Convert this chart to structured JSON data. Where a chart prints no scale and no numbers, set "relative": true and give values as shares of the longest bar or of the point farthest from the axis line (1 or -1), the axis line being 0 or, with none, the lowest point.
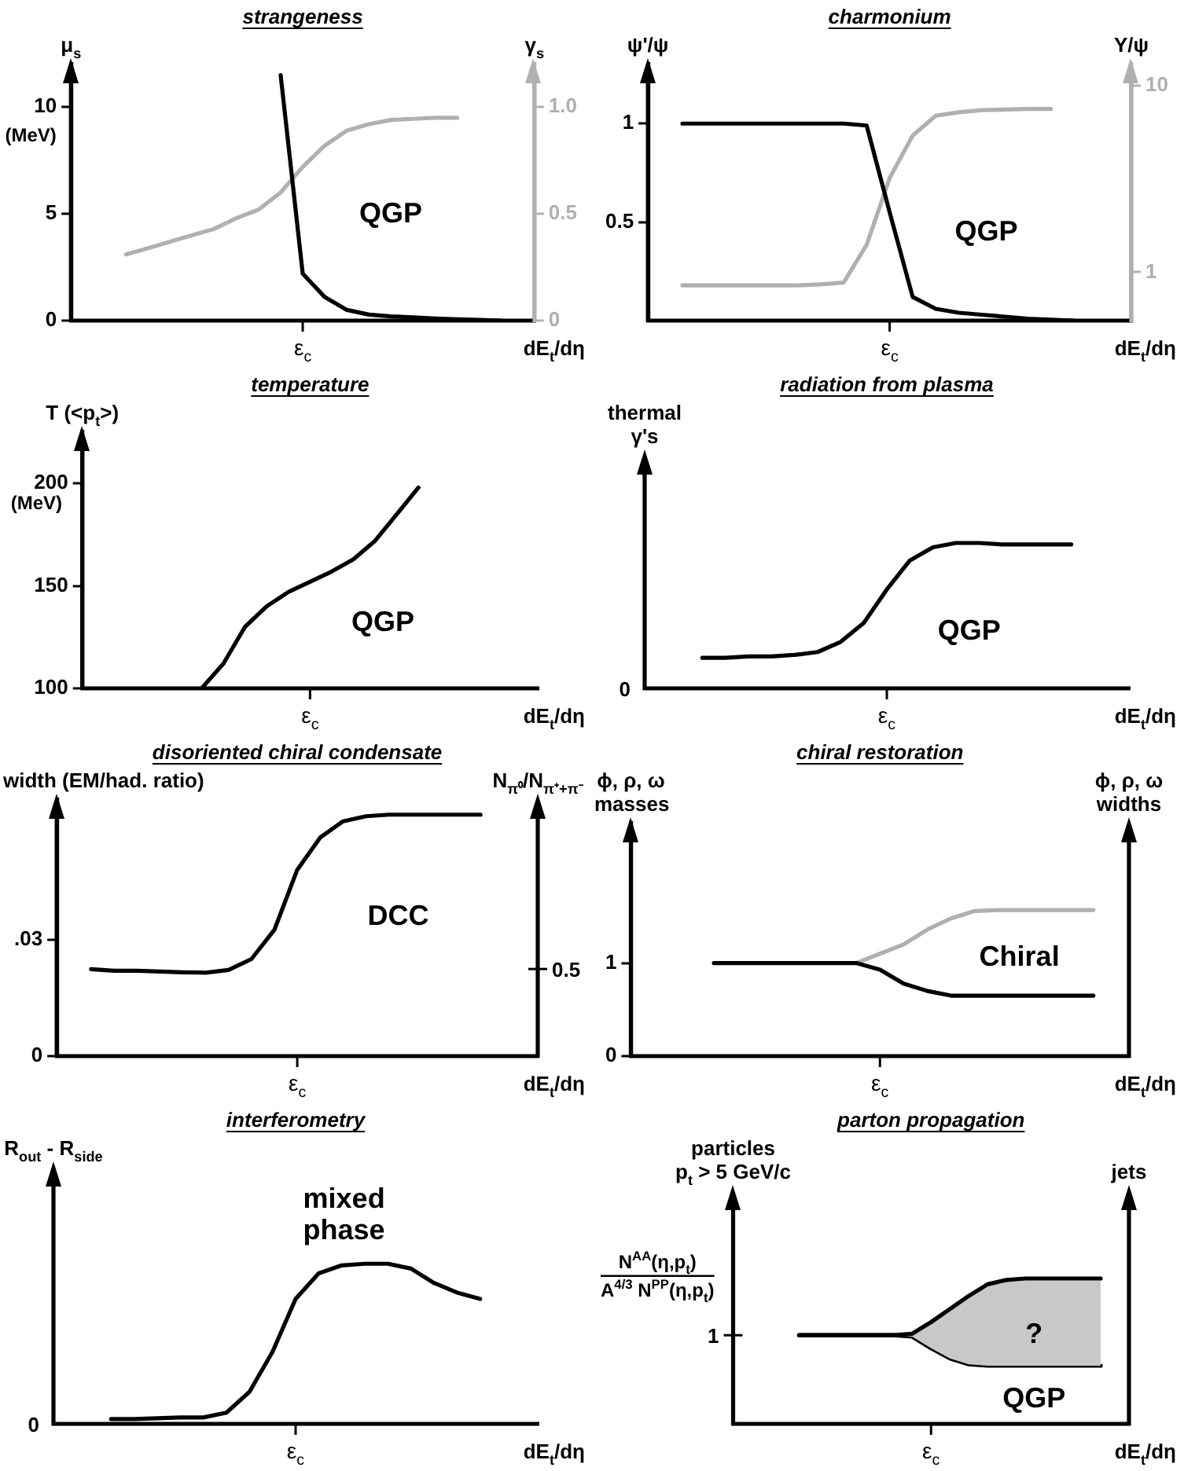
{
  "chart_data": [
    {
      "type": "line",
      "title": "strangeness",
      "xlabel": "dE$_{t}$/dη",
      "ylabel": "μ$_{s}$",
      "y2label": "γ$_{s}$",
      "categories": [
        null,
        null,
        null,
        null,
        null,
        null,
        null,
        null,
        null,
        null,
        "ε$_{c}$",
        null,
        null,
        null,
        null,
        null,
        null,
        null,
        null,
        null,
        null
      ],
      "ylim": [
        0,
        12
      ],
      "yticks": [
        0,
        5,
        10
      ],
      "y2lim": [
        0,
        1.2
      ],
      "y2ticks": [
        0,
        0.5,
        {
          "value": 1,
          "label": "1.0"
        }
      ],
      "series": [
        {
          "color": "#000000",
          "values": [
            null,
            null,
            null,
            null,
            null,
            null,
            null,
            null,
            null,
            11.5,
            2.2,
            1.1,
            0.5,
            0.28,
            0.2,
            0.15,
            0.1,
            0.06,
            0.03,
            0,
            null
          ]
        },
        {
          "color": "#b0b0b0",
          "axis": "y2",
          "values": [
            null,
            null,
            0.31,
            0.34,
            0.37,
            0.4,
            0.43,
            0.48,
            0.52,
            0.6,
            0.72,
            0.82,
            0.89,
            0.92,
            0.94,
            0.945,
            0.95,
            0.95,
            null,
            null,
            null
          ]
        }
      ],
      "annotations": [
        "(MeV)",
        "QGP"
      ]
    },
    {
      "type": "line",
      "title": "charmonium",
      "xlabel": "dE$_{t}$/dη",
      "ylabel": "ψ'/ψ",
      "y2label": "Υ/ψ",
      "categories": [
        null,
        null,
        null,
        null,
        null,
        null,
        null,
        null,
        null,
        null,
        "ε$_{c}$",
        null,
        null,
        null,
        null,
        null,
        null,
        null,
        null,
        null,
        null
      ],
      "ylim": [
        0,
        1.3
      ],
      "yticks": [
        0.5,
        1
      ],
      "y2lim": [
        0.55,
        13
      ],
      "y2ticks": [
        1,
        10
      ],
      "log": "y2",
      "series": [
        {
          "color": "#000000",
          "values": [
            null,
            1,
            1,
            1,
            1,
            1,
            1,
            1,
            1,
            0.99,
            0.55,
            0.12,
            0.06,
            0.04,
            0.03,
            0.02,
            0.01,
            0.005,
            0,
            null,
            null
          ]
        },
        {
          "color": "#b0b0b0",
          "axis": "y2",
          "values": [
            null,
            0.85,
            0.85,
            0.85,
            0.85,
            0.85,
            0.85,
            0.86,
            0.88,
            1.4,
            3.2,
            5.4,
            6.9,
            7.2,
            7.4,
            7.45,
            7.5,
            7.5,
            null,
            null,
            null
          ]
        }
      ],
      "annotations": [
        "QGP"
      ]
    },
    {
      "type": "line",
      "title": "temperature",
      "xlabel": "dE$_{t}$/dη",
      "ylabel": "T (<p$_{t}$>)",
      "categories": [
        null,
        null,
        null,
        null,
        null,
        null,
        null,
        null,
        null,
        null,
        "ε$_{c}$",
        null,
        null,
        null,
        null,
        null,
        null,
        null,
        null,
        null,
        null
      ],
      "ylim": [
        100,
        225
      ],
      "yticks": [
        100,
        150,
        200
      ],
      "series": [
        {
          "color": "#000000",
          "values": [
            null,
            null,
            null,
            null,
            null,
            100,
            112,
            130,
            140,
            147,
            152,
            157,
            163,
            172,
            185,
            198,
            null,
            null,
            null,
            null,
            null
          ]
        }
      ],
      "annotations": [
        "(MeV)",
        "QGP"
      ]
    },
    {
      "type": "line",
      "title": "radiation from plasma",
      "xlabel": "dE$_{t}$/dη",
      "ylabel": "thermal\nγ's",
      "relative": true,
      "categories": [
        null,
        null,
        null,
        null,
        null,
        null,
        null,
        null,
        null,
        null,
        null,
        null,
        null,
        null,
        null,
        null,
        null,
        null,
        null,
        null,
        null
      ],
      "series": [
        {
          "color": "#000000",
          "values": [
            null,
            null,
            0.21,
            0.21,
            0.22,
            0.22,
            0.23,
            0.25,
            0.32,
            0.45,
            0.68,
            0.88,
            0.97,
            1,
            1,
            0.99,
            0.99,
            0.99,
            0.99,
            null,
            null
          ]
        }
      ],
      "annotations": [
        "0",
        "QGP",
        "ε$_{c}$"
      ]
    },
    {
      "type": "line",
      "title": "disoriented chiral condensate",
      "xlabel": "dE$_{t}$/dη",
      "ylabel": "width (EM/had. ratio)",
      "y2label": "N$_{π⁰}$/N$_{π⁺+π⁻}$",
      "categories": [
        null,
        null,
        null,
        null,
        null,
        null,
        null,
        null,
        null,
        null,
        "ε$_{c}$",
        null,
        null,
        null,
        null,
        null,
        null,
        null,
        null,
        null,
        null
      ],
      "ylim": [
        0,
        0.066
      ],
      "yticks": [
        0,
        {
          "value": 0.03,
          "label": ".03"
        }
      ],
      "series": [
        {
          "color": "#000000",
          "values": [
            null,
            0.0224,
            0.022,
            0.022,
            0.0218,
            0.0216,
            0.0215,
            0.0222,
            0.025,
            0.0325,
            0.048,
            0.0563,
            0.0605,
            0.0618,
            0.0622,
            0.0622,
            0.0622,
            0.0622,
            0.0622,
            null,
            null
          ]
        }
      ],
      "annotations": [
        "0.5",
        "DCC"
      ]
    },
    {
      "type": "line",
      "title": "chiral restoration",
      "xlabel": "dE$_{t}$/dη",
      "ylabel": "ϕ, ρ, ω\nmasses",
      "y2label": "ϕ, ρ, ω\nwidths",
      "categories": [
        null,
        null,
        null,
        null,
        null,
        null,
        null,
        null,
        null,
        null,
        "ε$_{c}$",
        null,
        null,
        null,
        null,
        null,
        null,
        null,
        null,
        null,
        null
      ],
      "ylim": [
        0,
        2.5
      ],
      "yticks": [
        0,
        1
      ],
      "series": [
        {
          "color": "#000000",
          "values": [
            null,
            null,
            null,
            1,
            1,
            1,
            1,
            1,
            1,
            1,
            0.93,
            0.78,
            0.7,
            0.65,
            0.65,
            0.65,
            0.65,
            0.65,
            0.65,
            0.65,
            null
          ]
        },
        {
          "color": "#b0b0b0",
          "values": [
            null,
            null,
            null,
            null,
            null,
            null,
            null,
            null,
            null,
            1,
            1.1,
            1.2,
            1.36,
            1.48,
            1.56,
            1.57,
            1.57,
            1.57,
            1.57,
            1.57,
            null
          ]
        }
      ],
      "annotations": [
        "Chiral"
      ]
    },
    {
      "type": "line",
      "title": "interferometry",
      "xlabel": "dE$_{t}$/dη",
      "ylabel": "R$_{out}$ - R$_{side}$",
      "relative": true,
      "categories": [
        null,
        null,
        null,
        null,
        null,
        null,
        null,
        null,
        null,
        null,
        null,
        null,
        null,
        null,
        null,
        null,
        null,
        null,
        null,
        null,
        null
      ],
      "series": [
        {
          "color": "#000000",
          "values": [
            null,
            null,
            0.03,
            0.03,
            0.035,
            0.04,
            0.04,
            0.07,
            0.2,
            0.45,
            0.78,
            0.94,
            0.99,
            1,
            1,
            0.97,
            0.88,
            0.82,
            0.78,
            null,
            null
          ]
        }
      ],
      "annotations": [
        "0",
        "mixed\nphase",
        "ε$_{c}$"
      ]
    },
    {
      "type": "line",
      "title": "parton propagation",
      "xlabel": "dE$_{t}$/dη",
      "ylabel": "particles\np$_{t}$ > 5 GeV/c",
      "y2label": "jets",
      "relative": true,
      "categories": [
        null,
        null,
        null,
        null,
        null,
        null,
        null,
        null,
        null,
        null,
        null,
        null,
        null,
        null,
        null,
        null,
        null,
        null,
        null,
        null,
        null
      ],
      "series": [
        {
          "color": "#000000",
          "values": [
            null,
            null,
            null,
            0.61,
            0.61,
            0.61,
            0.61,
            0.61,
            0.61,
            0.62,
            0.7,
            0.79,
            0.88,
            0.96,
            0.99,
            1,
            1,
            1,
            1,
            1,
            null
          ]
        },
        {
          "color": "#000000",
          "values": [
            null,
            null,
            null,
            0.61,
            0.61,
            0.61,
            0.61,
            0.61,
            0.61,
            0.6,
            0.52,
            0.45,
            0.41,
            0.4,
            0.4,
            0.4,
            0.4,
            0.4,
            0.4,
            0.4,
            null
          ],
          "lower": [
            null,
            null,
            null,
            0.61,
            0.61,
            0.61,
            0.61,
            0.61,
            0.61,
            0.6,
            0.52,
            0.45,
            0.41,
            0.4,
            0.4,
            0.4,
            0.4,
            0.4,
            0.4,
            0.4,
            null
          ],
          "upper": [
            null,
            null,
            null,
            0.61,
            0.61,
            0.61,
            0.61,
            0.61,
            0.61,
            0.62,
            0.7,
            0.79,
            0.88,
            0.96,
            0.99,
            1,
            1,
            1,
            1,
            1,
            null
          ]
        }
      ],
      "annotations": [
        "N$^{AA}$(η,p$_{t}$)\nA$^{4/3}$ N$^{PP}$(η,p$_{t}$)",
        "1",
        "?",
        "QGP",
        "ε$_{c}$"
      ]
    }
  ]
}
